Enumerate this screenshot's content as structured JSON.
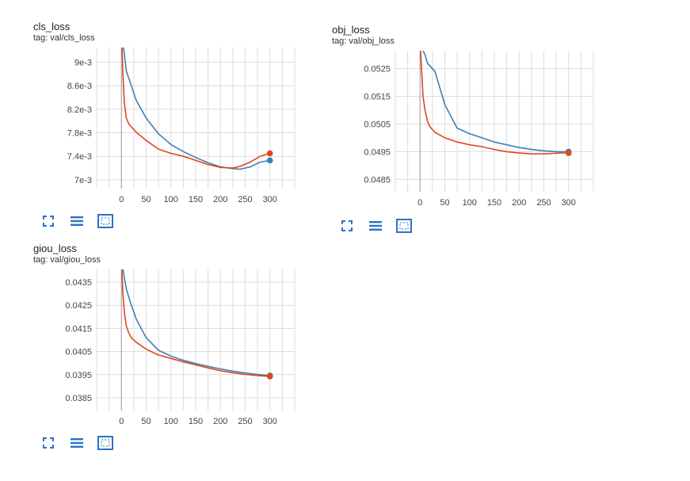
{
  "colors": {
    "series_blue": "#3f7fb0",
    "series_red": "#e2461f",
    "grid": "#dcdcdc",
    "icon": "#2a73c5"
  },
  "toolbar_icons": [
    "fullscreen-icon",
    "toggle-lines-icon",
    "fit-domain-icon"
  ],
  "chart_data": [
    {
      "type": "line",
      "title": "cls_loss",
      "subtitle": "tag: val/cls_loss",
      "xlim": [
        -50,
        350
      ],
      "ylim": [
        0.00685,
        0.00925
      ],
      "x_ticks": [
        0,
        50,
        100,
        150,
        200,
        250,
        300
      ],
      "y_ticks": [
        0.007,
        0.0074,
        0.0078,
        0.0082,
        0.0086,
        0.009
      ],
      "y_tick_labels": [
        "7e-3",
        "7.4e-3",
        "7.8e-3",
        "8.2e-3",
        "8.6e-3",
        "9e-3"
      ],
      "grid": true,
      "series": [
        {
          "color": "#3f7fb0",
          "x": [
            0,
            5,
            10,
            20,
            30,
            50,
            75,
            100,
            125,
            150,
            175,
            200,
            225,
            240,
            260,
            280,
            300
          ],
          "y": [
            0.0096,
            0.0092,
            0.00885,
            0.0086,
            0.00835,
            0.00805,
            0.00778,
            0.0076,
            0.00748,
            0.00738,
            0.00729,
            0.00722,
            0.00719,
            0.00718,
            0.00722,
            0.0073,
            0.00733
          ]
        },
        {
          "color": "#e2461f",
          "x": [
            0,
            3,
            6,
            10,
            15,
            20,
            30,
            50,
            75,
            100,
            125,
            150,
            175,
            200,
            225,
            240,
            260,
            280,
            300
          ],
          "y": [
            0.0096,
            0.0088,
            0.0083,
            0.00805,
            0.00795,
            0.0079,
            0.00781,
            0.00767,
            0.00752,
            0.00745,
            0.0074,
            0.00733,
            0.00726,
            0.00721,
            0.0072,
            0.00723,
            0.0073,
            0.0074,
            0.00745
          ]
        }
      ]
    },
    {
      "type": "line",
      "title": "obj_loss",
      "subtitle": "tag: val/obj_loss",
      "xlim": [
        -50,
        350
      ],
      "ylim": [
        0.04805,
        0.05315
      ],
      "x_ticks": [
        0,
        50,
        100,
        150,
        200,
        250,
        300
      ],
      "y_ticks": [
        0.0485,
        0.0495,
        0.0505,
        0.0515,
        0.0525
      ],
      "y_tick_labels": [
        "0.0485",
        "0.0495",
        "0.0505",
        "0.0515",
        "0.0525"
      ],
      "grid": true,
      "series": [
        {
          "color": "#3f7fb0",
          "x": [
            0,
            5,
            10,
            15,
            20,
            30,
            40,
            50,
            75,
            100,
            125,
            150,
            175,
            200,
            225,
            250,
            275,
            300
          ],
          "y": [
            0.0535,
            0.0532,
            0.053,
            0.0527,
            0.0526,
            0.0524,
            0.0518,
            0.0512,
            0.05035,
            0.05015,
            0.05,
            0.04985,
            0.04975,
            0.04965,
            0.04958,
            0.04953,
            0.0495,
            0.0495
          ]
        },
        {
          "color": "#e2461f",
          "x": [
            0,
            3,
            6,
            10,
            15,
            20,
            30,
            50,
            75,
            100,
            125,
            150,
            175,
            200,
            225,
            250,
            270,
            285,
            300
          ],
          "y": [
            0.0535,
            0.0525,
            0.0515,
            0.051,
            0.0506,
            0.0504,
            0.0502,
            0.05,
            0.04985,
            0.04975,
            0.04968,
            0.04958,
            0.0495,
            0.04945,
            0.04942,
            0.04942,
            0.04944,
            0.04945,
            0.04945
          ]
        }
      ]
    },
    {
      "type": "line",
      "title": "giou_loss",
      "subtitle": "tag: val/giou_loss",
      "xlim": [
        -50,
        350
      ],
      "ylim": [
        0.03795,
        0.04405
      ],
      "x_ticks": [
        0,
        50,
        100,
        150,
        200,
        250,
        300
      ],
      "y_ticks": [
        0.0385,
        0.0395,
        0.0405,
        0.0415,
        0.0425,
        0.0435
      ],
      "y_tick_labels": [
        "0.0385",
        "0.0395",
        "0.0405",
        "0.0415",
        "0.0425",
        "0.0435"
      ],
      "grid": true,
      "series": [
        {
          "color": "#3f7fb0",
          "x": [
            0,
            5,
            10,
            20,
            30,
            50,
            75,
            100,
            125,
            150,
            175,
            200,
            225,
            250,
            275,
            300
          ],
          "y": [
            0.0445,
            0.0438,
            0.0432,
            0.0425,
            0.0419,
            0.0411,
            0.04055,
            0.0403,
            0.04012,
            0.03998,
            0.03986,
            0.03975,
            0.03965,
            0.03957,
            0.03951,
            0.03946
          ]
        },
        {
          "color": "#e2461f",
          "x": [
            0,
            3,
            6,
            10,
            15,
            20,
            30,
            50,
            75,
            100,
            125,
            150,
            175,
            200,
            225,
            250,
            275,
            300
          ],
          "y": [
            0.0445,
            0.043,
            0.0422,
            0.0416,
            0.0413,
            0.0411,
            0.0409,
            0.0406,
            0.04035,
            0.0402,
            0.04005,
            0.03992,
            0.03979,
            0.03967,
            0.03958,
            0.03951,
            0.03946,
            0.03942
          ]
        }
      ]
    }
  ]
}
